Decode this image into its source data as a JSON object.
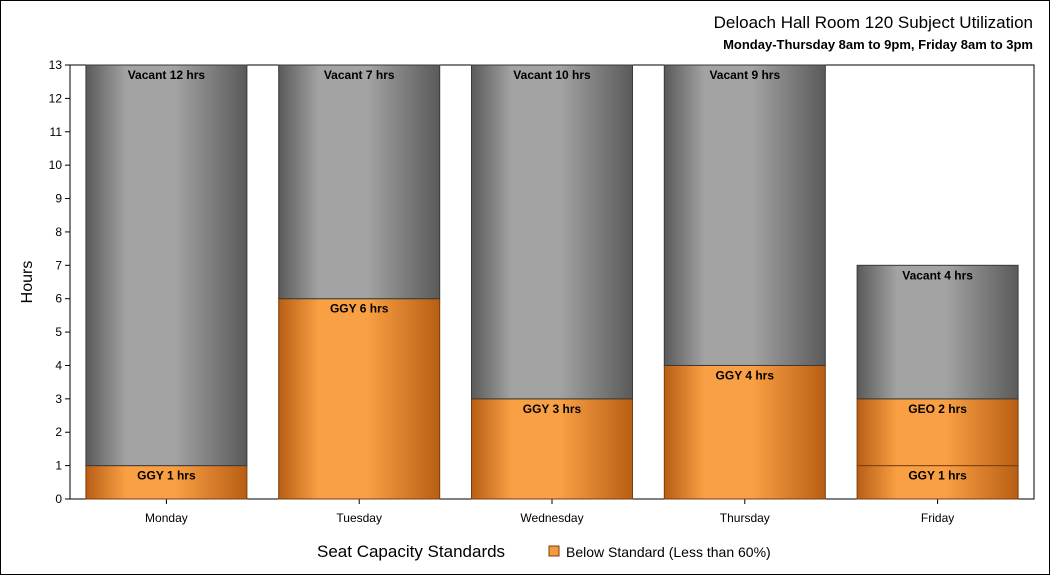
{
  "chart_data": {
    "type": "bar",
    "stacked": true,
    "title": "Deloach Hall Room 120 Subject Utilization",
    "subtitle": "Monday-Thursday 8am to 9pm, Friday 8am to 3pm",
    "xlabel": "",
    "ylabel": "Hours",
    "ylim": [
      0,
      13
    ],
    "yticks": [
      0,
      1,
      2,
      3,
      4,
      5,
      6,
      7,
      8,
      9,
      10,
      11,
      12,
      13
    ],
    "categories": [
      "Monday",
      "Tuesday",
      "Wednesday",
      "Thursday",
      "Friday"
    ],
    "bars": [
      {
        "category": "Monday",
        "segments": [
          {
            "label": "GGY 1 hrs",
            "value": 1,
            "kind": "used"
          },
          {
            "label": "Vacant 12 hrs",
            "value": 12,
            "kind": "vacant"
          }
        ]
      },
      {
        "category": "Tuesday",
        "segments": [
          {
            "label": "GGY 6 hrs",
            "value": 6,
            "kind": "used"
          },
          {
            "label": "Vacant 7 hrs",
            "value": 7,
            "kind": "vacant"
          }
        ]
      },
      {
        "category": "Wednesday",
        "segments": [
          {
            "label": "GGY 3 hrs",
            "value": 3,
            "kind": "used"
          },
          {
            "label": "Vacant 10 hrs",
            "value": 10,
            "kind": "vacant"
          }
        ]
      },
      {
        "category": "Thursday",
        "segments": [
          {
            "label": "GGY 4 hrs",
            "value": 4,
            "kind": "used"
          },
          {
            "label": "Vacant 9 hrs",
            "value": 9,
            "kind": "vacant"
          }
        ]
      },
      {
        "category": "Friday",
        "segments": [
          {
            "label": "GGY 1 hrs",
            "value": 1,
            "kind": "used"
          },
          {
            "label": "GEO 2 hrs",
            "value": 2,
            "kind": "used"
          },
          {
            "label": "Vacant 4 hrs",
            "value": 4,
            "kind": "vacant"
          }
        ]
      }
    ],
    "legend": {
      "title": "Seat Capacity Standards",
      "placement": "bottom",
      "entries": [
        {
          "name": "Below Standard (Less than 60%)",
          "color": "#f59a3c"
        }
      ]
    },
    "colors": {
      "used_mid": "#f9a044",
      "used_edge": "#b85e14",
      "used_stroke": "#7a3c0e",
      "vacant_mid": "#a3a3a3",
      "vacant_edge": "#5a5a5a",
      "vacant_stroke": "#3a3a3a"
    }
  }
}
